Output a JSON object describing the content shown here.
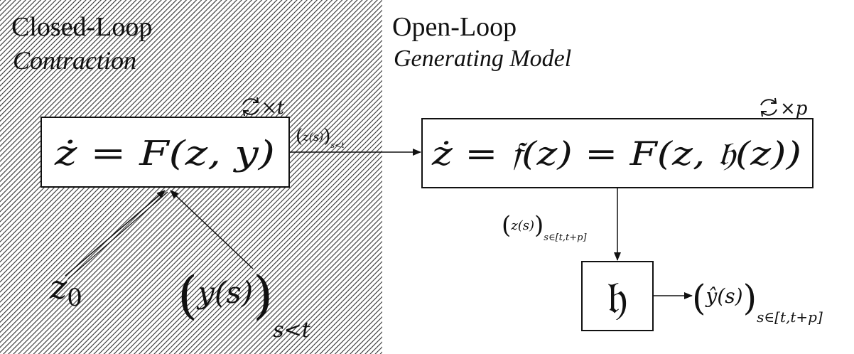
{
  "closed_loop": {
    "title": "Closed-Loop",
    "subtitle": "Contraction",
    "equation": "ż = F(z, y)",
    "repeat": "×t",
    "input_z0": {
      "base": "z",
      "sub": "0"
    },
    "input_y": {
      "text": "y(s)",
      "sub": "s<t"
    }
  },
  "open_loop": {
    "title": "Open-Loop",
    "subtitle": "Generating Model",
    "equation": "ż = 𝔣(z) = F(z, 𝔥(z))",
    "repeat": "×p"
  },
  "edge_closed_to_open": {
    "text": "z(s)",
    "sub": "s<t"
  },
  "edge_open_to_h": {
    "text": "z(s)",
    "sub": "s∈[t,t+p]"
  },
  "readout_box": {
    "label": "𝔥"
  },
  "output": {
    "text": "ŷ(s)",
    "sub": "s∈[t,t+p]"
  },
  "colors": {
    "hatch_background": "#c8c8c8",
    "stroke": "#111111"
  }
}
